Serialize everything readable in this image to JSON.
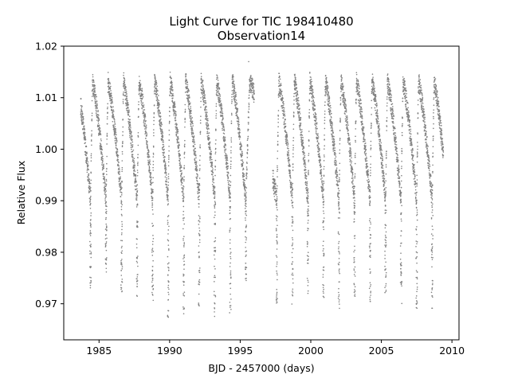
{
  "chart_data": {
    "type": "scatter",
    "title": "Light Curve for TIC 198410480",
    "subtitle": "Observation14",
    "xlabel": "BJD - 2457000 (days)",
    "ylabel": "Relative Flux",
    "xlim": [
      1982.5,
      2010.5
    ],
    "ylim": [
      0.963,
      1.02
    ],
    "xticks": [
      1985,
      1990,
      1995,
      2000,
      2005,
      2010
    ],
    "yticks": [
      0.97,
      0.98,
      0.99,
      1.0,
      1.01,
      1.02
    ],
    "xtick_labels": [
      "1985",
      "1990",
      "1995",
      "2000",
      "2005",
      "2010"
    ],
    "ytick_labels": [
      "0.97",
      "0.98",
      "0.99",
      "1.00",
      "1.01",
      "1.02"
    ],
    "grid": false,
    "marker_color": "#808080",
    "segments": [
      {
        "x_start": 1983.7,
        "x_end": 1996.0
      },
      {
        "x_start": 1997.3,
        "x_end": 2009.4
      }
    ],
    "deep_minima": [
      {
        "x": 1984.4,
        "y": 0.973
      },
      {
        "x": 1985.5,
        "y": 0.976
      },
      {
        "x": 1986.6,
        "y": 0.972
      },
      {
        "x": 1987.7,
        "y": 0.971
      },
      {
        "x": 1988.8,
        "y": 0.97
      },
      {
        "x": 1989.9,
        "y": 0.967
      },
      {
        "x": 1991.0,
        "y": 0.968
      },
      {
        "x": 1992.1,
        "y": 0.969
      },
      {
        "x": 1993.2,
        "y": 0.967
      },
      {
        "x": 1994.3,
        "y": 0.968
      },
      {
        "x": 1995.4,
        "y": 0.974
      },
      {
        "x": 1997.6,
        "y": 0.97
      },
      {
        "x": 1998.7,
        "y": 0.969
      },
      {
        "x": 1999.8,
        "y": 0.972
      },
      {
        "x": 2000.9,
        "y": 0.971
      },
      {
        "x": 2002.0,
        "y": 0.969
      },
      {
        "x": 2003.1,
        "y": 0.97
      },
      {
        "x": 2004.2,
        "y": 0.97
      },
      {
        "x": 2005.3,
        "y": 0.971
      },
      {
        "x": 2006.4,
        "y": 0.97
      },
      {
        "x": 2007.5,
        "y": 0.968
      },
      {
        "x": 2008.6,
        "y": 0.969
      }
    ],
    "flux_upper_envelope": 1.013,
    "flux_typical_lower_envelope": 0.99,
    "flux_max_observed": 1.017
  }
}
